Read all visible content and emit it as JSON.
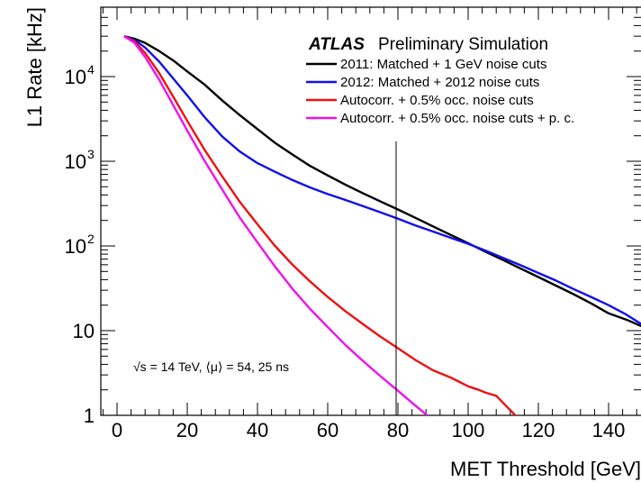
{
  "chart_data": {
    "type": "line",
    "title": "",
    "experiment": "ATLAS",
    "experiment_tag": "Preliminary Simulation",
    "xlabel": "MET Threshold [GeV]",
    "ylabel": "L1 Rate [kHz]",
    "xlim": [
      -4,
      150
    ],
    "ylim": [
      1,
      50000
    ],
    "yscale": "log",
    "x_ticks": [
      0,
      20,
      40,
      60,
      80,
      100,
      120,
      140
    ],
    "x_tick_labels": [
      "0",
      "20",
      "40",
      "60",
      "80",
      "100",
      "120",
      "140"
    ],
    "y_ticks": [
      {
        "value": 1,
        "label": "1"
      },
      {
        "value": 10,
        "label": "10"
      },
      {
        "value": 100,
        "label": "10",
        "exp": "2"
      },
      {
        "value": 1000,
        "label": "10",
        "exp": "3"
      },
      {
        "value": 10000,
        "label": "10",
        "exp": "4"
      }
    ],
    "grid": false,
    "legend_position": "top-right",
    "annotation": "√s  = 14 TeV, ⟨μ⟩ = 54, 25 ns",
    "vertical_marker_x": 80,
    "series": [
      {
        "name": "2011: Matched + 1 GeV noise cuts",
        "color": "#000000",
        "x": [
          2,
          5,
          8,
          12,
          16,
          20,
          25,
          30,
          35,
          40,
          45,
          50,
          55,
          60,
          65,
          70,
          75,
          80,
          85,
          90,
          95,
          100,
          105,
          110,
          115,
          120,
          125,
          130,
          135,
          140,
          145,
          150
        ],
        "y": [
          30000,
          28000,
          25000,
          20000,
          15500,
          11500,
          8000,
          5200,
          3500,
          2400,
          1650,
          1200,
          880,
          680,
          530,
          420,
          335,
          270,
          215,
          170,
          135,
          108,
          85,
          68,
          54,
          43,
          34,
          27,
          21,
          16,
          13.5,
          11
        ]
      },
      {
        "name": "2012: Matched + 2012 noise cuts",
        "color": "#1010ee",
        "x": [
          2,
          5,
          8,
          12,
          16,
          20,
          25,
          30,
          35,
          40,
          45,
          50,
          55,
          60,
          65,
          70,
          75,
          80,
          85,
          90,
          95,
          100,
          105,
          110,
          115,
          120,
          125,
          130,
          135,
          140,
          145,
          150
        ],
        "y": [
          30000,
          27000,
          22000,
          15000,
          9500,
          6000,
          3300,
          1950,
          1300,
          950,
          750,
          600,
          490,
          410,
          350,
          295,
          250,
          210,
          175,
          148,
          125,
          106,
          88,
          72,
          59,
          48,
          39,
          31,
          25,
          20,
          15.5,
          11.5
        ]
      },
      {
        "name": "Autocorr. + 0.5% occ. noise cuts",
        "color": "#ee1111",
        "x": [
          2,
          5,
          8,
          12,
          16,
          20,
          25,
          30,
          35,
          40,
          45,
          50,
          55,
          60,
          65,
          70,
          75,
          80,
          85,
          90,
          95,
          100,
          103,
          105,
          108,
          110,
          112,
          114
        ],
        "y": [
          30000,
          26000,
          19000,
          11000,
          5800,
          3000,
          1350,
          660,
          330,
          180,
          100,
          60,
          38,
          25,
          17,
          12,
          8.5,
          6.2,
          4.5,
          3.4,
          2.8,
          2.2,
          2.0,
          1.85,
          1.7,
          1.4,
          1.15,
          0.95
        ]
      },
      {
        "name": "Autocorr. + 0.5% occ. noise cuts + p. c.",
        "color": "#ee11ee",
        "x": [
          2,
          5,
          8,
          12,
          16,
          20,
          25,
          30,
          35,
          40,
          45,
          50,
          55,
          60,
          65,
          70,
          75,
          80,
          85,
          89
        ],
        "y": [
          30000,
          25000,
          17000,
          9200,
          4600,
          2300,
          1000,
          460,
          215,
          110,
          57,
          31,
          18,
          11,
          6.8,
          4.4,
          2.9,
          1.95,
          1.3,
          0.95
        ]
      }
    ]
  }
}
